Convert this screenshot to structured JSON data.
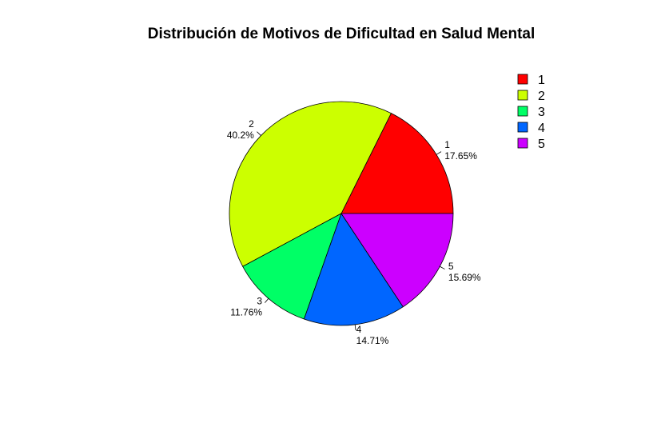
{
  "chart_data": {
    "type": "pie",
    "title": "Distribución de Motivos de Dificultad en Salud Mental",
    "categories": [
      "1",
      "2",
      "3",
      "4",
      "5"
    ],
    "values": [
      17.65,
      40.2,
      11.76,
      14.71,
      15.69
    ],
    "percent_labels": [
      "17.65%",
      "40.2%",
      "11.76%",
      "14.71%",
      "15.69%"
    ],
    "colors": [
      "#ff0000",
      "#ccff00",
      "#00ff66",
      "#0066ff",
      "#cc00ff"
    ],
    "legend": {
      "position": "top-right",
      "entries": [
        "1",
        "2",
        "3",
        "4",
        "5"
      ]
    },
    "start_angle": "3 o'clock",
    "direction": "counterclockwise"
  }
}
